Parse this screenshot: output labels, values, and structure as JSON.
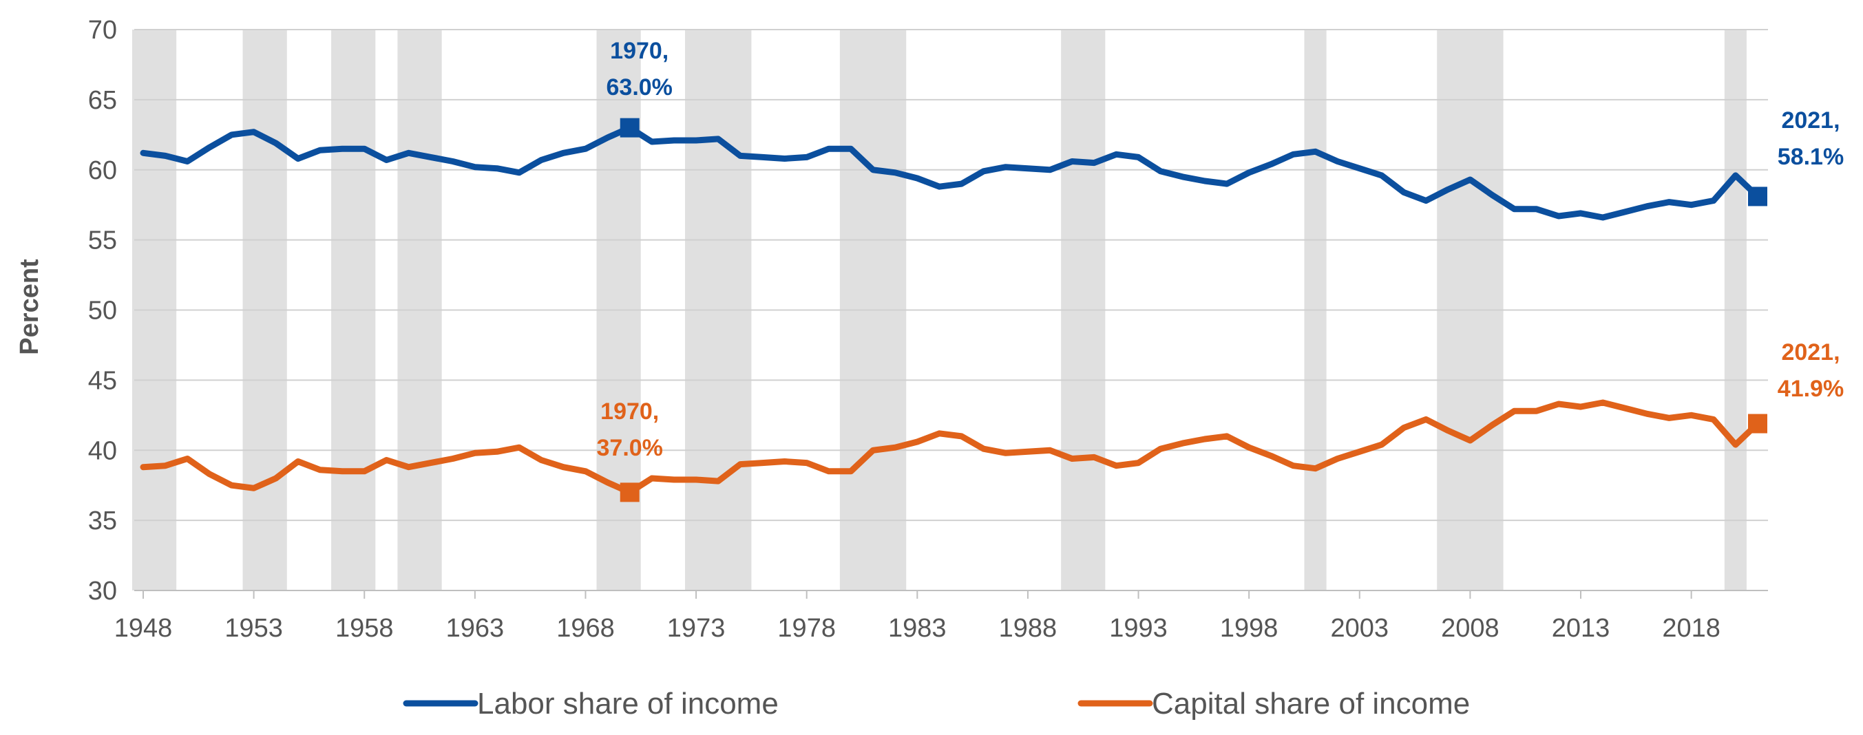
{
  "chart_data": {
    "type": "line",
    "title": "",
    "xlabel": "",
    "ylabel": "Percent",
    "ylim": [
      30,
      70
    ],
    "xlim": [
      1948,
      2021
    ],
    "y_ticks": [
      "30",
      "35",
      "40",
      "45",
      "50",
      "55",
      "60",
      "65",
      "70"
    ],
    "x_ticks": [
      "1948",
      "1953",
      "1958",
      "1963",
      "1968",
      "1973",
      "1978",
      "1983",
      "1988",
      "1993",
      "1998",
      "2003",
      "2008",
      "2013",
      "2018"
    ],
    "grid": "horizontal",
    "legend_position": "bottom",
    "recession_shading": [
      [
        1948,
        1949
      ],
      [
        1953,
        1954
      ],
      [
        1957,
        1958
      ],
      [
        1960,
        1961
      ],
      [
        1969,
        1970
      ],
      [
        1973,
        1975
      ],
      [
        1980,
        1982
      ],
      [
        1990,
        1991
      ],
      [
        2001,
        2001
      ],
      [
        2007,
        2009
      ],
      [
        2020,
        2020
      ]
    ],
    "x": [
      1948,
      1949,
      1950,
      1951,
      1952,
      1953,
      1954,
      1955,
      1956,
      1957,
      1958,
      1959,
      1960,
      1961,
      1962,
      1963,
      1964,
      1965,
      1966,
      1967,
      1968,
      1969,
      1970,
      1971,
      1972,
      1973,
      1974,
      1975,
      1976,
      1977,
      1978,
      1979,
      1980,
      1981,
      1982,
      1983,
      1984,
      1985,
      1986,
      1987,
      1988,
      1989,
      1990,
      1991,
      1992,
      1993,
      1994,
      1995,
      1996,
      1997,
      1998,
      1999,
      2000,
      2001,
      2002,
      2003,
      2004,
      2005,
      2006,
      2007,
      2008,
      2009,
      2010,
      2011,
      2012,
      2013,
      2014,
      2015,
      2016,
      2017,
      2018,
      2019,
      2020,
      2021
    ],
    "series": [
      {
        "name": "Labor share of income",
        "color": "#0b4f9e",
        "values": [
          61.2,
          61.0,
          60.6,
          61.6,
          62.5,
          62.7,
          61.9,
          60.8,
          61.4,
          61.5,
          61.5,
          60.7,
          61.2,
          60.9,
          60.6,
          60.2,
          60.1,
          59.8,
          60.7,
          61.2,
          61.5,
          62.3,
          63.0,
          62.0,
          62.1,
          62.1,
          62.2,
          61.0,
          60.9,
          60.8,
          60.9,
          61.5,
          61.5,
          60.0,
          59.8,
          59.4,
          58.8,
          59.0,
          59.9,
          60.2,
          60.1,
          60.0,
          60.6,
          60.5,
          61.1,
          60.9,
          59.9,
          59.5,
          59.2,
          59.0,
          59.8,
          60.4,
          61.1,
          61.3,
          60.6,
          60.1,
          59.6,
          58.4,
          57.8,
          58.6,
          59.3,
          58.2,
          57.2,
          57.2,
          56.7,
          56.9,
          56.6,
          57.0,
          57.4,
          57.7,
          57.5,
          57.8,
          59.6,
          58.1
        ]
      },
      {
        "name": "Capital share of income",
        "color": "#e0621a",
        "values": [
          38.8,
          38.9,
          39.4,
          38.3,
          37.5,
          37.3,
          38.0,
          39.2,
          38.6,
          38.5,
          38.5,
          39.3,
          38.8,
          39.1,
          39.4,
          39.8,
          39.9,
          40.2,
          39.3,
          38.8,
          38.5,
          37.7,
          37.0,
          38.0,
          37.9,
          37.9,
          37.8,
          39.0,
          39.1,
          39.2,
          39.1,
          38.5,
          38.5,
          40.0,
          40.2,
          40.6,
          41.2,
          41.0,
          40.1,
          39.8,
          39.9,
          40.0,
          39.4,
          39.5,
          38.9,
          39.1,
          40.1,
          40.5,
          40.8,
          41.0,
          40.2,
          39.6,
          38.9,
          38.7,
          39.4,
          39.9,
          40.4,
          41.6,
          42.2,
          41.4,
          40.7,
          41.8,
          42.8,
          42.8,
          43.3,
          43.1,
          43.4,
          43.0,
          42.6,
          42.3,
          42.5,
          42.2,
          40.4,
          41.9
        ]
      }
    ],
    "annotations": [
      {
        "series": 0,
        "x": 1970,
        "line1": "1970,",
        "line2": "63.0%"
      },
      {
        "series": 0,
        "x": 2021,
        "line1": "2021,",
        "line2": "58.1%"
      },
      {
        "series": 1,
        "x": 1970,
        "line1": "1970,",
        "line2": "37.0%"
      },
      {
        "series": 1,
        "x": 2021,
        "line1": "2021,",
        "line2": "41.9%"
      }
    ]
  }
}
